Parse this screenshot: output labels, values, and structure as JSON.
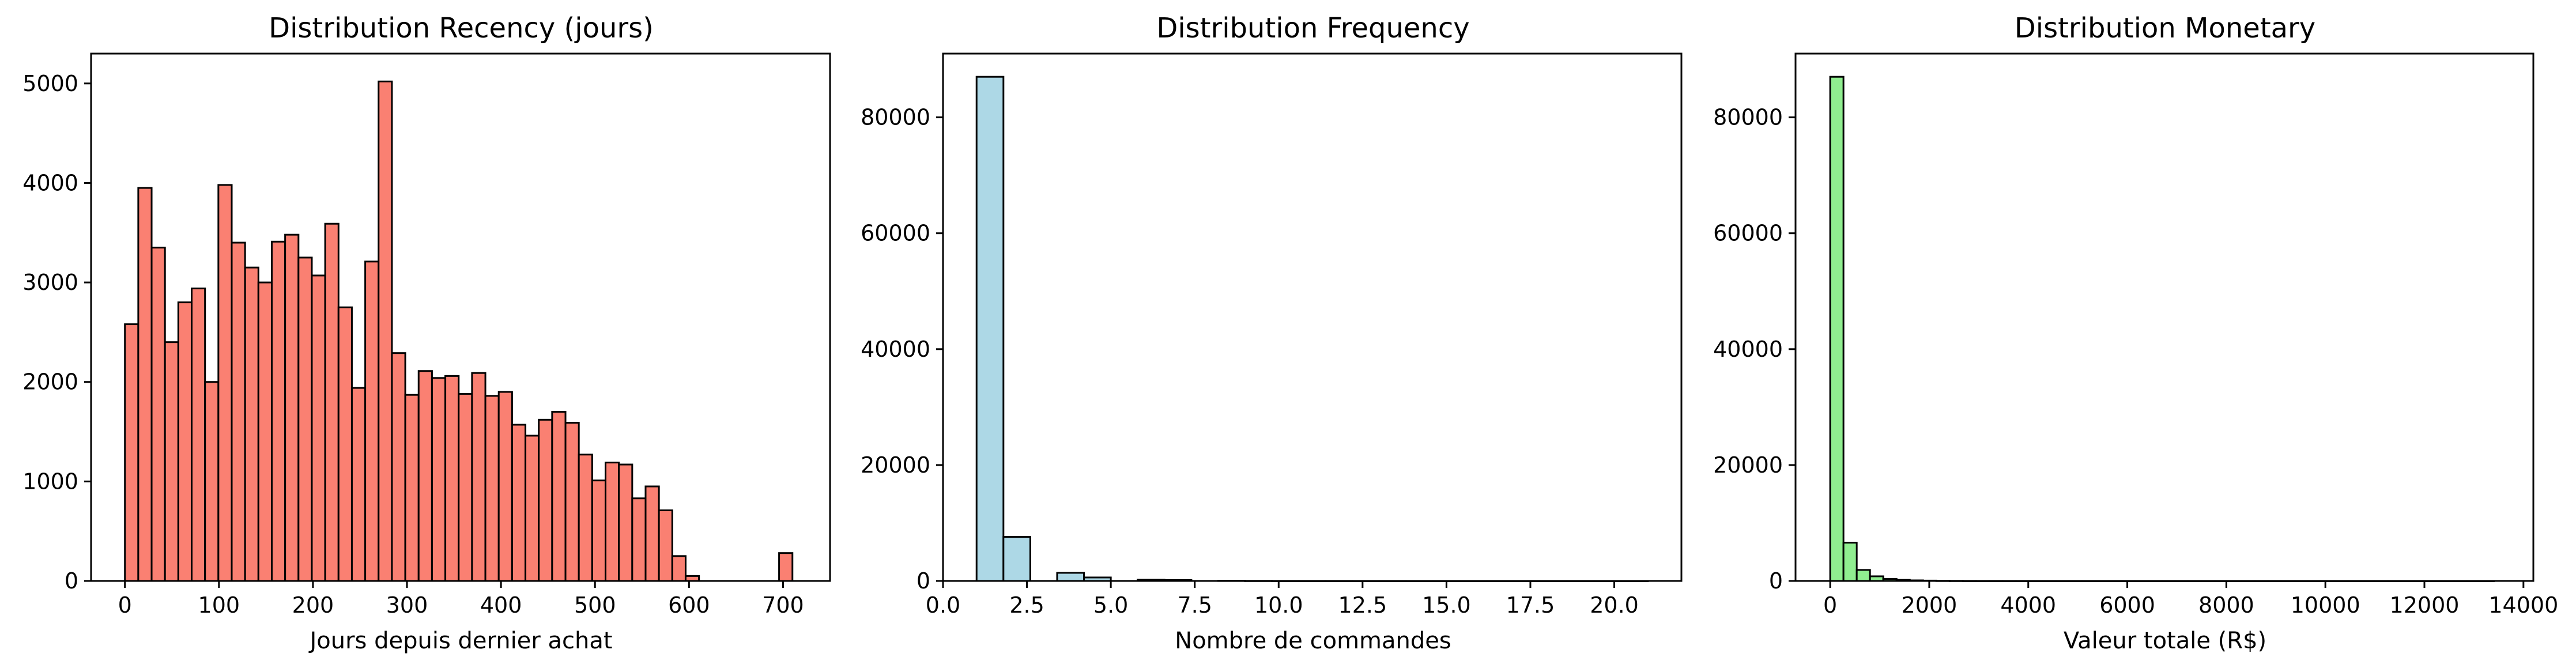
{
  "chart_data": [
    {
      "type": "bar",
      "title": "Distribution Recency (jours)",
      "xlabel": "Jours depuis dernier achat",
      "ylabel": "",
      "color": "#fa8072",
      "edge_color": "#000000",
      "xlim": [
        -36,
        750
      ],
      "ylim": [
        0,
        5300
      ],
      "bin_start": 0,
      "bin_width": 14.2,
      "values": [
        2580,
        3950,
        3350,
        2400,
        2800,
        2940,
        2000,
        3980,
        3400,
        3150,
        3000,
        3410,
        3480,
        3250,
        3070,
        3590,
        2750,
        1940,
        3210,
        5020,
        2290,
        1870,
        2110,
        2040,
        2060,
        1880,
        2090,
        1860,
        1900,
        1570,
        1460,
        1620,
        1700,
        1590,
        1270,
        1010,
        1190,
        1170,
        830,
        950,
        710,
        250,
        50,
        0,
        0,
        0,
        0,
        0,
        0,
        280
      ],
      "xticks": [
        0,
        100,
        200,
        300,
        400,
        500,
        600,
        700
      ],
      "xtick_labels": [
        "0",
        "100",
        "200",
        "300",
        "400",
        "500",
        "600",
        "700"
      ],
      "yticks": [
        0,
        1000,
        2000,
        3000,
        4000,
        5000
      ],
      "ytick_labels": [
        "0",
        "1000",
        "2000",
        "3000",
        "4000",
        "5000"
      ]
    },
    {
      "type": "bar",
      "title": "Distribution Frequency",
      "xlabel": "Nombre de commandes",
      "ylabel": "",
      "color": "#add8e6",
      "edge_color": "#000000",
      "xlim": [
        0,
        22
      ],
      "ylim": [
        0,
        91000
      ],
      "bin_start": 1,
      "bin_width": 0.8,
      "values": [
        87000,
        7600,
        0,
        1400,
        600,
        0,
        200,
        150,
        0,
        40,
        20,
        10,
        5,
        5,
        3,
        2,
        1,
        1,
        1,
        1,
        1,
        1,
        1,
        1,
        1
      ],
      "xticks": [
        0,
        2.5,
        5,
        7.5,
        10,
        12.5,
        15,
        17.5,
        20
      ],
      "xtick_labels": [
        "0.0",
        "2.5",
        "5.0",
        "7.5",
        "10.0",
        "12.5",
        "15.0",
        "17.5",
        "20.0"
      ],
      "yticks": [
        0,
        20000,
        40000,
        60000,
        80000
      ],
      "ytick_labels": [
        "0",
        "20000",
        "40000",
        "60000",
        "80000"
      ]
    },
    {
      "type": "bar",
      "title": "Distribution Monetary",
      "xlabel": "Valeur totale (R$)",
      "ylabel": "",
      "color": "#90ee90",
      "edge_color": "#000000",
      "xlim": [
        -700,
        14200
      ],
      "ylim": [
        0,
        91000
      ],
      "bin_start": 0,
      "bin_width": 268,
      "values": [
        87000,
        6600,
        1900,
        800,
        350,
        180,
        100,
        60,
        30,
        20,
        10,
        5,
        5,
        3,
        2,
        1,
        1,
        1,
        1,
        1,
        1,
        1,
        1,
        1,
        1,
        1,
        1,
        1,
        1,
        1,
        1,
        1,
        1,
        1,
        1,
        1,
        1,
        1,
        1,
        1,
        1,
        1,
        1,
        1,
        1,
        1,
        1,
        1,
        1,
        1
      ],
      "xticks": [
        0,
        2000,
        4000,
        6000,
        8000,
        10000,
        12000,
        14000
      ],
      "xtick_labels": [
        "0",
        "2000",
        "4000",
        "6000",
        "8000",
        "10000",
        "12000",
        "14000"
      ],
      "yticks": [
        0,
        20000,
        40000,
        60000,
        80000
      ],
      "ytick_labels": [
        "0",
        "20000",
        "40000",
        "60000",
        "80000"
      ]
    }
  ]
}
